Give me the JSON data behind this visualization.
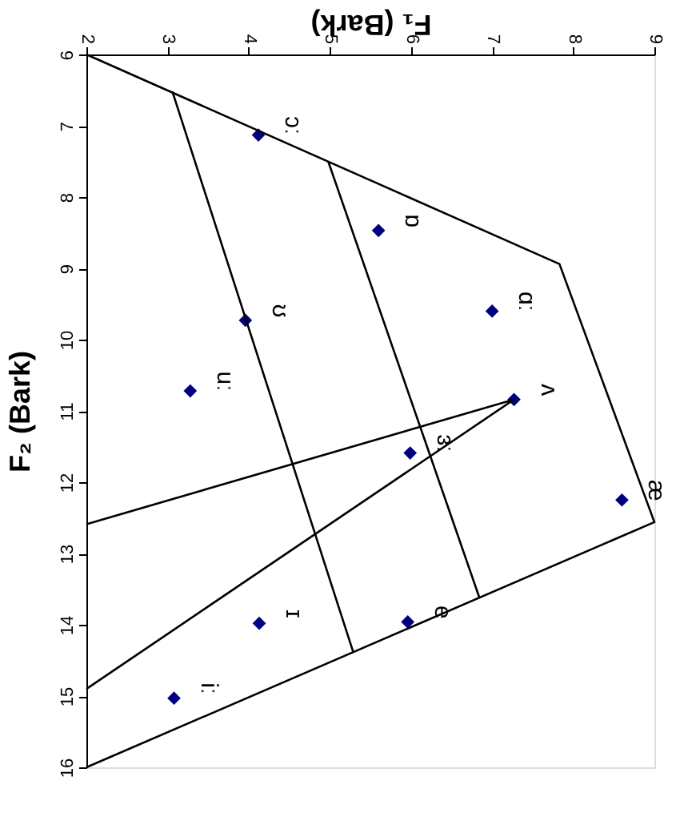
{
  "chart_data": {
    "type": "scatter",
    "xlabel": "F₁ (Bark)",
    "ylabel": "F₂ (Bark)",
    "xlim": [
      2,
      9
    ],
    "xticks": [
      2,
      3,
      4,
      5,
      6,
      7,
      8,
      9
    ],
    "ylim": [
      16,
      6
    ],
    "yticks": [
      6,
      7,
      8,
      9,
      10,
      11,
      12,
      13,
      14,
      15,
      16
    ],
    "grid": false,
    "series": [
      {
        "marker": "diamond",
        "color": "#000080",
        "x": [
          4.12,
          5.6,
          3.96,
          7.0,
          3.28,
          7.27,
          5.99,
          8.6,
          4.13,
          5.96,
          3.08
        ],
        "values": [
          7.13,
          8.47,
          9.73,
          9.6,
          10.72,
          10.84,
          11.59,
          12.25,
          13.98,
          13.96,
          15.03
        ]
      },
      {
        "type": "line",
        "marker": "none",
        "color": "#000000",
        "x": [
          2,
          7.83,
          9,
          2
        ],
        "values": [
          6,
          8.94,
          12.56,
          16
        ]
      },
      {
        "type": "line",
        "marker": "none",
        "color": "#000000",
        "x": [
          3.06,
          5.29
        ],
        "values": [
          6.52,
          14.39
        ]
      },
      {
        "type": "line",
        "marker": "none",
        "color": "#000000",
        "x": [
          4.98,
          6.84
        ],
        "values": [
          7.5,
          13.61
        ]
      },
      {
        "type": "line",
        "marker": "none",
        "color": "#000000",
        "x": [
          2,
          7.27,
          2
        ],
        "values": [
          12.59,
          10.84,
          14.9
        ]
      }
    ],
    "annotations": [
      {
        "text": "ɔː",
        "x": 4.12,
        "y": 7.13
      },
      {
        "text": "ɒ",
        "x": 5.6,
        "y": 8.47
      },
      {
        "text": "ʊ",
        "x": 3.96,
        "y": 9.73
      },
      {
        "text": "ɑː",
        "x": 7.0,
        "y": 9.6
      },
      {
        "text": "uː",
        "x": 3.28,
        "y": 10.72
      },
      {
        "text": "ʌ",
        "x": 7.27,
        "y": 10.84
      },
      {
        "text": "ɜː",
        "x": 5.99,
        "y": 11.59
      },
      {
        "text": "æ",
        "x": 8.6,
        "y": 12.25
      },
      {
        "text": "ɪ",
        "x": 4.13,
        "y": 13.98
      },
      {
        "text": "e",
        "x": 5.96,
        "y": 13.96
      },
      {
        "text": "iː",
        "x": 3.08,
        "y": 15.03
      }
    ]
  }
}
